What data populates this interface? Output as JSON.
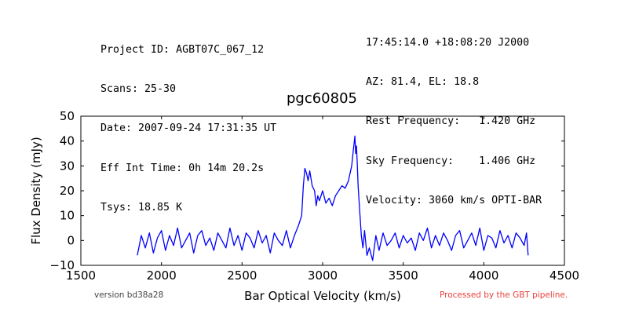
{
  "header": {
    "left": [
      "Project ID: AGBT07C_067_12",
      "Scans: 25-30",
      "Date: 2007-09-24 17:31:35 UT",
      "Eff Int Time: 0h 14m 20.2s",
      "Tsys: 18.85 K"
    ],
    "right": [
      "17:45:14.0 +18:08:20 J2000",
      "AZ: 81.4, EL: 18.8",
      "Rest Frequency:   1.420 GHz",
      "Sky Frequency:    1.406 GHz",
      "Velocity: 3060 km/s OPTI-BAR"
    ]
  },
  "footer": {
    "version": "version bd38a28",
    "pipeline": "Processed by the GBT pipeline."
  },
  "chart_data": {
    "type": "line",
    "title": "pgc60805",
    "xlabel": "Bar Optical Velocity (km/s)",
    "ylabel": "Flux Density (mJy)",
    "xlim": [
      1500,
      4500
    ],
    "ylim": [
      -10,
      50
    ],
    "xticks": [
      1500,
      2000,
      2500,
      3000,
      3500,
      4000,
      4500
    ],
    "yticks": [
      -10,
      0,
      10,
      20,
      30,
      40,
      50
    ],
    "grid": false,
    "colors": {
      "line": "#0000ff",
      "pipeline_text": "#e8413c"
    },
    "series": [
      {
        "x": [
          1850,
          1875,
          1900,
          1925,
          1950,
          1975,
          2000,
          2025,
          2050,
          2075,
          2100,
          2125,
          2150,
          2175,
          2200,
          2225,
          2250,
          2275,
          2300,
          2325,
          2350,
          2375,
          2400,
          2425,
          2450,
          2475,
          2500,
          2525,
          2550,
          2575,
          2600,
          2625,
          2650,
          2675,
          2700,
          2725,
          2750,
          2775,
          2800,
          2825,
          2850,
          2870,
          2880,
          2890,
          2900,
          2910,
          2920,
          2935,
          2950,
          2960,
          2970,
          2980,
          3000,
          3020,
          3040,
          3060,
          3080,
          3100,
          3120,
          3140,
          3160,
          3180,
          3190,
          3200,
          3205,
          3210,
          3215,
          3220,
          3230,
          3240,
          3250,
          3260,
          3275,
          3290,
          3310,
          3330,
          3350,
          3375,
          3400,
          3425,
          3450,
          3475,
          3500,
          3525,
          3550,
          3575,
          3600,
          3625,
          3650,
          3675,
          3700,
          3725,
          3750,
          3775,
          3800,
          3825,
          3850,
          3875,
          3900,
          3925,
          3950,
          3975,
          4000,
          4025,
          4050,
          4075,
          4100,
          4125,
          4150,
          4175,
          4200,
          4225,
          4250,
          4265,
          4275
        ],
        "y": [
          -6,
          2,
          -3,
          3,
          -5,
          1,
          4,
          -4,
          2,
          -2,
          5,
          -3,
          0,
          3,
          -5,
          2,
          4,
          -2,
          1,
          -4,
          3,
          0,
          -3,
          5,
          -2,
          2,
          -4,
          3,
          1,
          -3,
          4,
          -1,
          2,
          -5,
          3,
          0,
          -2,
          4,
          -3,
          2,
          6,
          10,
          22,
          29,
          27,
          24,
          28,
          22,
          20,
          14,
          18,
          16,
          20,
          15,
          17,
          14,
          18,
          20,
          22,
          21,
          24,
          30,
          36,
          42,
          35,
          38,
          31,
          22,
          12,
          2,
          -3,
          4,
          -6,
          -3,
          -8,
          2,
          -4,
          3,
          -2,
          0,
          3,
          -3,
          2,
          -1,
          1,
          -4,
          3,
          0,
          5,
          -3,
          2,
          -2,
          3,
          0,
          -4,
          2,
          4,
          -3,
          0,
          3,
          -2,
          5,
          -4,
          2,
          1,
          -3,
          4,
          -1,
          2,
          -3,
          3,
          1,
          -2,
          3,
          -6
        ]
      }
    ]
  }
}
